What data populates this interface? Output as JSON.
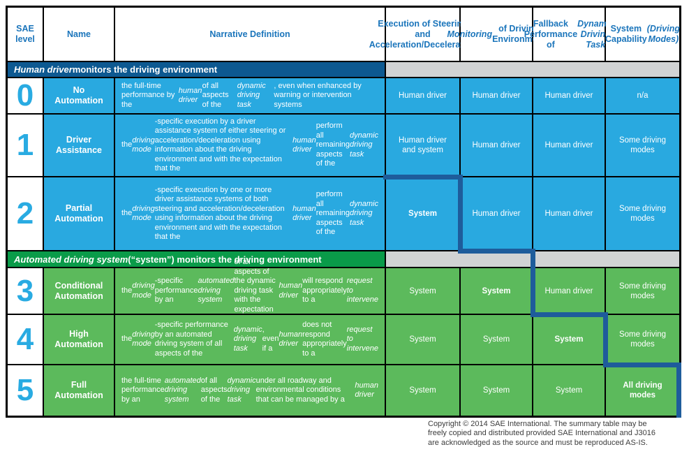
{
  "colors": {
    "cell_blue": "#29a9e0",
    "cell_green": "#5cba5c",
    "band_blue": "#0d5991",
    "band_green": "#0a9b49",
    "band_grey": "#d1d3d4",
    "header_text_blue": "#1b75bb",
    "level_number_blue": "#29abe2",
    "staircase_border_blue": "#1e5c9b",
    "grid_line_black": "#000000"
  },
  "header": {
    "sae_level": "SAE level",
    "name": "Name",
    "narrative": "Narrative Definition",
    "execution": [
      {
        "t": "Execution of Steering and Acceleration/Deceleration"
      }
    ],
    "monitoring": [
      {
        "t": "Monitoring",
        "i": true
      },
      {
        "t": " of Driving Environment"
      }
    ],
    "fallback": [
      {
        "t": "Fallback Performance of "
      },
      {
        "t": "Dynamic Driving Task",
        "i": true
      }
    ],
    "capability": [
      {
        "t": "System Capability "
      },
      {
        "t": "(Driving Modes)",
        "i": true
      }
    ]
  },
  "sections": [
    {
      "label": [
        {
          "t": "Human driver",
          "i": true
        },
        {
          "t": " monitors the driving environment"
        }
      ]
    },
    {
      "label": [
        {
          "t": "Automated driving system",
          "i": true
        },
        {
          "t": " (“system”) monitors the driving environment"
        }
      ]
    }
  ],
  "rows": [
    {
      "level": "0",
      "name": "No Automation",
      "narrative": [
        {
          "t": "the full-time performance by the "
        },
        {
          "t": "human driver",
          "i": true
        },
        {
          "t": " of all aspects of the "
        },
        {
          "t": "dynamic driving task",
          "i": true
        },
        {
          "t": ", even when enhanced by warning or intervention systems"
        }
      ],
      "cells": [
        [
          {
            "t": "Human driver"
          }
        ],
        [
          {
            "t": "Human driver"
          }
        ],
        [
          {
            "t": "Human driver"
          }
        ],
        [
          {
            "t": "n/a"
          }
        ]
      ]
    },
    {
      "level": "1",
      "name": "Driver Assistance",
      "narrative": [
        {
          "t": "the "
        },
        {
          "t": "driving mode",
          "i": true
        },
        {
          "t": "-specific execution by a driver assistance system of either steering or acceleration/deceleration using information about the driving environment and with the expectation that the "
        },
        {
          "t": "human driver",
          "i": true
        },
        {
          "t": " perform all remaining aspects of the "
        },
        {
          "t": "dynamic driving task",
          "i": true
        }
      ],
      "cells": [
        [
          {
            "t": "Human driver and system"
          }
        ],
        [
          {
            "t": "Human driver"
          }
        ],
        [
          {
            "t": "Human driver"
          }
        ],
        [
          {
            "t": "Some driving modes"
          }
        ]
      ]
    },
    {
      "level": "2",
      "name": "Partial Automation",
      "narrative": [
        {
          "t": "the "
        },
        {
          "t": "driving mode",
          "i": true
        },
        {
          "t": "-specific execution by one or more driver assistance systems of both steering and acceleration/deceleration using information about the driving environment and with the expectation that the "
        },
        {
          "t": "human driver",
          "i": true
        },
        {
          "t": " perform all remaining aspects of the "
        },
        {
          "t": "dynamic driving task",
          "i": true
        }
      ],
      "cells": [
        [
          {
            "t": "System",
            "b": true
          }
        ],
        [
          {
            "t": "Human driver"
          }
        ],
        [
          {
            "t": "Human driver"
          }
        ],
        [
          {
            "t": "Some driving modes"
          }
        ]
      ]
    },
    {
      "level": "3",
      "name": "Conditional Automation",
      "narrative": [
        {
          "t": "the "
        },
        {
          "t": "driving mode",
          "i": true
        },
        {
          "t": "-specific performance by an "
        },
        {
          "t": "automated driving system",
          "i": true
        },
        {
          "t": " of all aspects of the dynamic driving task with the expectation that the "
        },
        {
          "t": "human driver",
          "i": true
        },
        {
          "t": " will respond appropriately to a "
        },
        {
          "t": "request to intervene",
          "i": true
        }
      ],
      "cells": [
        [
          {
            "t": "System"
          }
        ],
        [
          {
            "t": "System",
            "b": true
          }
        ],
        [
          {
            "t": "Human driver"
          }
        ],
        [
          {
            "t": "Some driving modes"
          }
        ]
      ]
    },
    {
      "level": "4",
      "name": "High Automation",
      "narrative": [
        {
          "t": "the "
        },
        {
          "t": "driving mode",
          "i": true
        },
        {
          "t": "-specific performance by an automated driving system of all aspects of the "
        },
        {
          "t": "dynamic driving task",
          "i": true
        },
        {
          "t": ", even if a "
        },
        {
          "t": "human driver",
          "i": true
        },
        {
          "t": " does not respond appropriately to a "
        },
        {
          "t": "request to intervene",
          "i": true
        }
      ],
      "cells": [
        [
          {
            "t": "System"
          }
        ],
        [
          {
            "t": "System"
          }
        ],
        [
          {
            "t": "System",
            "b": true
          }
        ],
        [
          {
            "t": "Some driving modes"
          }
        ]
      ]
    },
    {
      "level": "5",
      "name": "Full Automation",
      "narrative": [
        {
          "t": "the full-time performance by an "
        },
        {
          "t": "automated driving system",
          "i": true
        },
        {
          "t": " of all aspects of the "
        },
        {
          "t": "dynamic driving task",
          "i": true
        },
        {
          "t": " under all roadway and environmental conditions that can be managed by a "
        },
        {
          "t": "human driver",
          "i": true
        }
      ],
      "cells": [
        [
          {
            "t": "System"
          }
        ],
        [
          {
            "t": "System"
          }
        ],
        [
          {
            "t": "System"
          }
        ],
        [
          {
            "t": "All driving modes",
            "b": true
          }
        ]
      ]
    }
  ],
  "copyright": {
    "line1": "Copyright © 2014 SAE International.  The summary table may be",
    "line2": "freely copied and distributed provided SAE International and J3016",
    "line3": "are acknowledged as the source and must be reproduced AS-IS."
  }
}
